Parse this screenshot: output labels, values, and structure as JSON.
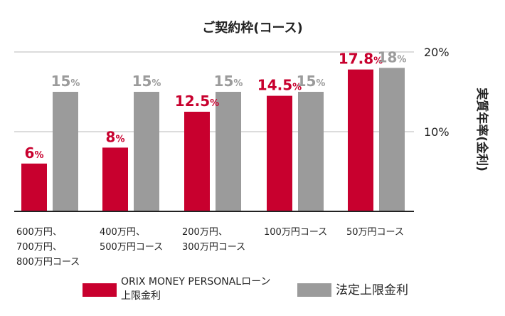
{
  "colors": {
    "red": "#c8002e",
    "gray": "#9b9b9b",
    "grid": "#d0d0d0",
    "axis": "#222222",
    "text": "#222222"
  },
  "chart_data": {
    "type": "bar",
    "title": "ご契約枠(コース)",
    "ylabel": "実質年率(金利)",
    "y_axis_side": "right",
    "ylim": [
      0,
      20
    ],
    "yticks": [
      {
        "value": 10,
        "label": "10%"
      },
      {
        "value": 20,
        "label": "20%"
      }
    ],
    "grid": true,
    "legend_position": "bottom",
    "categories": [
      "600万円、\n700万円、\n800万円コース",
      "400万円、\n500万円コース",
      "200万円、\n300万円コース",
      "100万円コース",
      "50万円コース"
    ],
    "series": [
      {
        "name": "ORIX MONEY PERSONALローン\n上限金利",
        "color": "#c8002e",
        "values": [
          6,
          8,
          12.5,
          14.5,
          17.8
        ],
        "labels": [
          {
            "num": "6",
            "unit": "%"
          },
          {
            "num": "8",
            "unit": "%"
          },
          {
            "num": "12.5",
            "unit": "%"
          },
          {
            "num": "14.5",
            "unit": "%"
          },
          {
            "num": "17.8",
            "unit": "%"
          }
        ]
      },
      {
        "name": "法定上限金利",
        "color": "#9b9b9b",
        "values": [
          15,
          15,
          15,
          15,
          18
        ],
        "labels": [
          {
            "num": "15",
            "unit": "%"
          },
          {
            "num": "15",
            "unit": "%"
          },
          {
            "num": "15",
            "unit": "%"
          },
          {
            "num": "15",
            "unit": "%"
          },
          {
            "num": "18",
            "unit": "%"
          }
        ]
      }
    ]
  }
}
